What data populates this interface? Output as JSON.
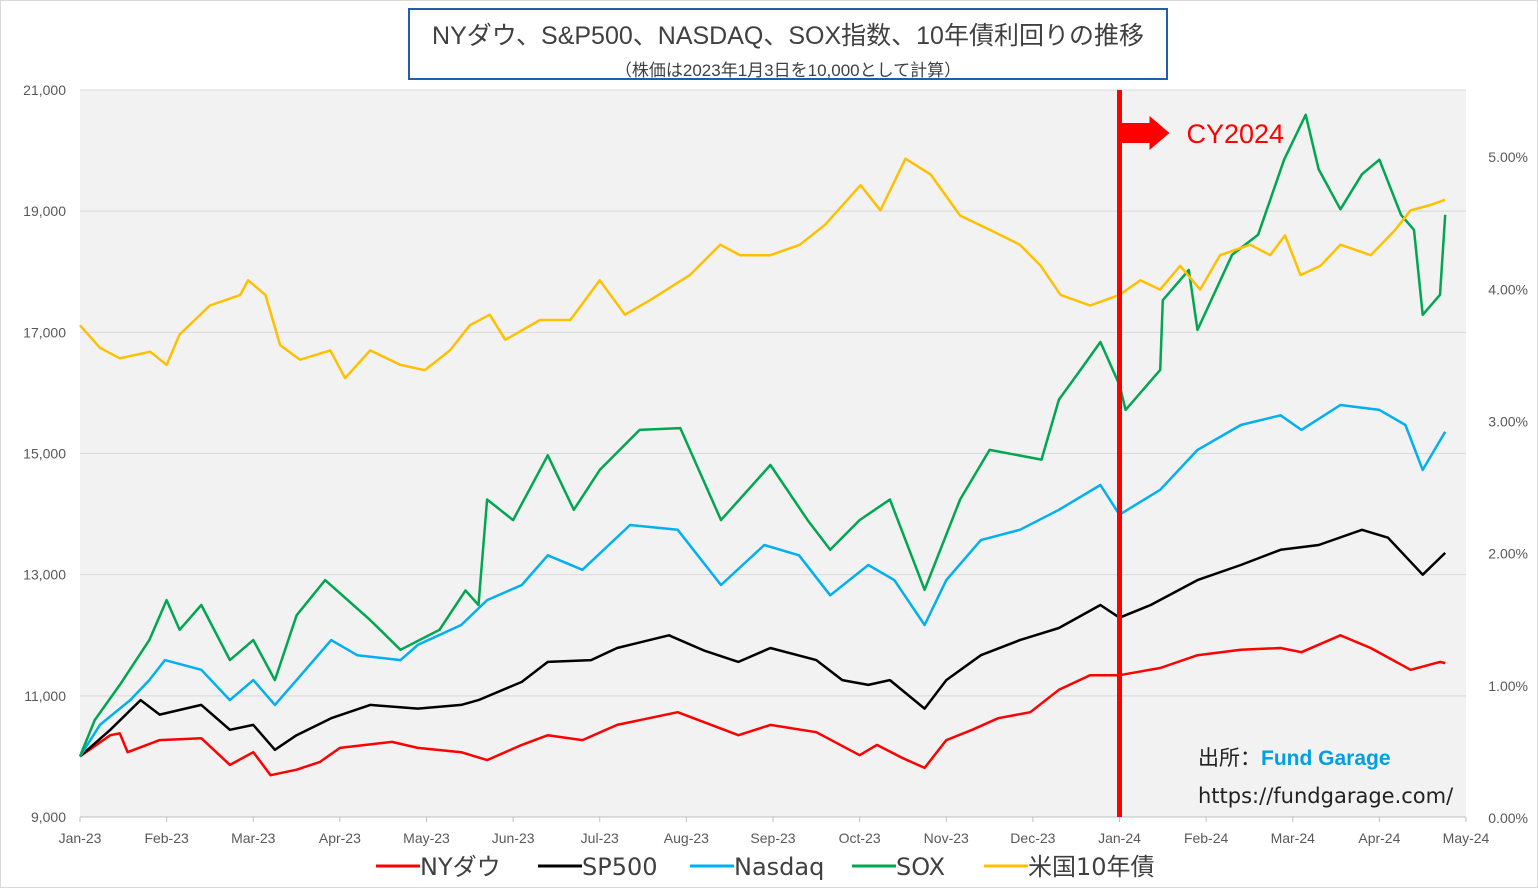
{
  "title": "NYダウ、S&P500、NASDAQ、SOX指数、10年債利回りの推移",
  "subtitle": "（株価は2023年1月3日を10,000として計算）",
  "source": {
    "label": "出所：",
    "name": "Fund Garage",
    "url": "https://fundgarage.com/"
  },
  "chart_data": {
    "type": "line",
    "x_unit": "months since Jan-2023",
    "x_ticks": [
      "Jan-23",
      "Feb-23",
      "Mar-23",
      "Apr-23",
      "May-23",
      "Jun-23",
      "Jul-23",
      "Aug-23",
      "Sep-23",
      "Oct-23",
      "Nov-23",
      "Dec-23",
      "Jan-24",
      "Feb-24",
      "Mar-24",
      "Apr-24",
      "May-24"
    ],
    "xlim": [
      0,
      16
    ],
    "y_left": {
      "lim": [
        9000,
        21000
      ],
      "ticks": [
        "9,000",
        "11,000",
        "13,000",
        "15,000",
        "17,000",
        "19,000",
        "21,000"
      ]
    },
    "y_right": {
      "lim": [
        0,
        5.5
      ],
      "ticks": [
        "0.00%",
        "1.00%",
        "2.00%",
        "3.00%",
        "4.00%",
        "5.00%"
      ]
    },
    "grid": true,
    "legend_position": "bottom",
    "annotation": {
      "text": "CY2024",
      "x": 12,
      "color": "#ff0000"
    },
    "series": [
      {
        "name": "NYダウ",
        "color": "#ff0000",
        "axis": "left",
        "points": [
          [
            0,
            10000
          ],
          [
            0.35,
            10350
          ],
          [
            0.46,
            10380
          ],
          [
            0.55,
            10070
          ],
          [
            0.92,
            10270
          ],
          [
            1.4,
            10300
          ],
          [
            1.73,
            9860
          ],
          [
            2.0,
            10070
          ],
          [
            2.2,
            9690
          ],
          [
            2.5,
            9780
          ],
          [
            2.77,
            9910
          ],
          [
            3.0,
            10140
          ],
          [
            3.6,
            10240
          ],
          [
            3.9,
            10140
          ],
          [
            4.4,
            10070
          ],
          [
            4.7,
            9940
          ],
          [
            5.1,
            10190
          ],
          [
            5.4,
            10350
          ],
          [
            5.8,
            10270
          ],
          [
            6.2,
            10520
          ],
          [
            6.9,
            10730
          ],
          [
            7.6,
            10350
          ],
          [
            7.97,
            10520
          ],
          [
            8.5,
            10400
          ],
          [
            9.0,
            10020
          ],
          [
            9.2,
            10190
          ],
          [
            9.5,
            9970
          ],
          [
            9.75,
            9810
          ],
          [
            10.0,
            10270
          ],
          [
            10.3,
            10440
          ],
          [
            10.6,
            10630
          ],
          [
            10.97,
            10730
          ],
          [
            11.3,
            11100
          ],
          [
            11.66,
            11340
          ],
          [
            12.0,
            11340
          ],
          [
            12.47,
            11460
          ],
          [
            12.9,
            11670
          ],
          [
            13.4,
            11760
          ],
          [
            13.86,
            11790
          ],
          [
            14.1,
            11720
          ],
          [
            14.55,
            12000
          ],
          [
            14.9,
            11790
          ],
          [
            15.36,
            11430
          ],
          [
            15.7,
            11560
          ],
          [
            15.76,
            11540
          ]
        ]
      },
      {
        "name": "SP500",
        "color": "#000000",
        "axis": "left",
        "points": [
          [
            0,
            10000
          ],
          [
            0.35,
            10440
          ],
          [
            0.7,
            10930
          ],
          [
            0.92,
            10690
          ],
          [
            1.4,
            10850
          ],
          [
            1.73,
            10440
          ],
          [
            2.0,
            10520
          ],
          [
            2.25,
            10110
          ],
          [
            2.5,
            10350
          ],
          [
            2.9,
            10630
          ],
          [
            3.35,
            10850
          ],
          [
            3.9,
            10790
          ],
          [
            4.4,
            10850
          ],
          [
            4.6,
            10930
          ],
          [
            5.1,
            11230
          ],
          [
            5.4,
            11560
          ],
          [
            5.9,
            11590
          ],
          [
            6.2,
            11790
          ],
          [
            6.8,
            12000
          ],
          [
            7.2,
            11750
          ],
          [
            7.6,
            11560
          ],
          [
            7.97,
            11790
          ],
          [
            8.5,
            11590
          ],
          [
            8.8,
            11260
          ],
          [
            9.1,
            11180
          ],
          [
            9.35,
            11260
          ],
          [
            9.75,
            10790
          ],
          [
            10.0,
            11260
          ],
          [
            10.4,
            11670
          ],
          [
            10.85,
            11920
          ],
          [
            11.3,
            12120
          ],
          [
            11.78,
            12500
          ],
          [
            12.0,
            12290
          ],
          [
            12.36,
            12500
          ],
          [
            12.9,
            12910
          ],
          [
            13.4,
            13160
          ],
          [
            13.86,
            13410
          ],
          [
            14.3,
            13490
          ],
          [
            14.8,
            13740
          ],
          [
            15.1,
            13610
          ],
          [
            15.5,
            13000
          ],
          [
            15.76,
            13360
          ]
        ]
      },
      {
        "name": "Nasdaq",
        "color": "#00b0f0",
        "axis": "left",
        "points": [
          [
            0,
            10000
          ],
          [
            0.23,
            10520
          ],
          [
            0.58,
            10930
          ],
          [
            0.8,
            11260
          ],
          [
            0.98,
            11590
          ],
          [
            1.4,
            11430
          ],
          [
            1.73,
            10930
          ],
          [
            2.0,
            11260
          ],
          [
            2.25,
            10850
          ],
          [
            2.5,
            11260
          ],
          [
            2.9,
            11920
          ],
          [
            3.2,
            11670
          ],
          [
            3.7,
            11590
          ],
          [
            3.9,
            11840
          ],
          [
            4.4,
            12170
          ],
          [
            4.7,
            12580
          ],
          [
            5.1,
            12830
          ],
          [
            5.4,
            13320
          ],
          [
            5.8,
            13080
          ],
          [
            6.35,
            13820
          ],
          [
            6.9,
            13740
          ],
          [
            7.4,
            12830
          ],
          [
            7.9,
            13490
          ],
          [
            8.3,
            13320
          ],
          [
            8.66,
            12660
          ],
          [
            9.1,
            13160
          ],
          [
            9.4,
            12910
          ],
          [
            9.75,
            12170
          ],
          [
            10.0,
            12910
          ],
          [
            10.4,
            13570
          ],
          [
            10.85,
            13740
          ],
          [
            11.3,
            14070
          ],
          [
            11.78,
            14480
          ],
          [
            12.0,
            13990
          ],
          [
            12.47,
            14400
          ],
          [
            12.9,
            15060
          ],
          [
            13.4,
            15470
          ],
          [
            13.86,
            15630
          ],
          [
            14.1,
            15390
          ],
          [
            14.55,
            15800
          ],
          [
            15.0,
            15720
          ],
          [
            15.3,
            15470
          ],
          [
            15.5,
            14730
          ],
          [
            15.76,
            15360
          ]
        ]
      },
      {
        "name": "SOX",
        "color": "#00a650",
        "axis": "left",
        "points": [
          [
            0,
            10000
          ],
          [
            0.17,
            10600
          ],
          [
            0.46,
            11180
          ],
          [
            0.8,
            11920
          ],
          [
            1.0,
            12580
          ],
          [
            1.15,
            12090
          ],
          [
            1.4,
            12500
          ],
          [
            1.73,
            11590
          ],
          [
            2.0,
            11920
          ],
          [
            2.25,
            11260
          ],
          [
            2.5,
            12330
          ],
          [
            2.83,
            12910
          ],
          [
            3.35,
            12250
          ],
          [
            3.7,
            11760
          ],
          [
            4.15,
            12090
          ],
          [
            4.45,
            12740
          ],
          [
            4.6,
            12500
          ],
          [
            4.7,
            14240
          ],
          [
            5.0,
            13900
          ],
          [
            5.4,
            14970
          ],
          [
            5.7,
            14070
          ],
          [
            6.0,
            14730
          ],
          [
            6.46,
            15390
          ],
          [
            6.93,
            15420
          ],
          [
            7.4,
            13900
          ],
          [
            7.97,
            14810
          ],
          [
            8.4,
            13900
          ],
          [
            8.66,
            13410
          ],
          [
            9.0,
            13900
          ],
          [
            9.35,
            14240
          ],
          [
            9.75,
            12750
          ],
          [
            10.16,
            14240
          ],
          [
            10.5,
            15060
          ],
          [
            11.1,
            14900
          ],
          [
            11.3,
            15890
          ],
          [
            11.55,
            16380
          ],
          [
            11.78,
            16840
          ],
          [
            12.0,
            16130
          ],
          [
            12.07,
            15720
          ],
          [
            12.47,
            16380
          ],
          [
            12.5,
            17530
          ],
          [
            12.8,
            18030
          ],
          [
            12.9,
            17040
          ],
          [
            13.3,
            18280
          ],
          [
            13.6,
            18610
          ],
          [
            13.9,
            19850
          ],
          [
            14.15,
            20590
          ],
          [
            14.3,
            19690
          ],
          [
            14.55,
            19030
          ],
          [
            14.8,
            19610
          ],
          [
            15.0,
            19850
          ],
          [
            15.25,
            18940
          ],
          [
            15.4,
            18690
          ],
          [
            15.5,
            17290
          ],
          [
            15.7,
            17620
          ],
          [
            15.76,
            18940
          ]
        ]
      },
      {
        "name": "米国10年債",
        "color": "#ffc000",
        "axis": "right",
        "points": [
          [
            0,
            3.72
          ],
          [
            0.23,
            3.55
          ],
          [
            0.46,
            3.47
          ],
          [
            0.81,
            3.52
          ],
          [
            1.0,
            3.42
          ],
          [
            1.15,
            3.65
          ],
          [
            1.5,
            3.87
          ],
          [
            1.85,
            3.95
          ],
          [
            1.94,
            4.06
          ],
          [
            2.14,
            3.95
          ],
          [
            2.31,
            3.57
          ],
          [
            2.54,
            3.46
          ],
          [
            2.89,
            3.53
          ],
          [
            3.06,
            3.32
          ],
          [
            3.35,
            3.53
          ],
          [
            3.7,
            3.42
          ],
          [
            3.98,
            3.38
          ],
          [
            4.27,
            3.53
          ],
          [
            4.5,
            3.72
          ],
          [
            4.73,
            3.8
          ],
          [
            4.91,
            3.61
          ],
          [
            5.31,
            3.76
          ],
          [
            5.66,
            3.76
          ],
          [
            6.0,
            4.06
          ],
          [
            6.29,
            3.8
          ],
          [
            6.58,
            3.91
          ],
          [
            7.04,
            4.1
          ],
          [
            7.39,
            4.33
          ],
          [
            7.62,
            4.25
          ],
          [
            7.97,
            4.25
          ],
          [
            8.31,
            4.33
          ],
          [
            8.6,
            4.48
          ],
          [
            9.01,
            4.78
          ],
          [
            9.24,
            4.59
          ],
          [
            9.53,
            4.98
          ],
          [
            9.82,
            4.86
          ],
          [
            10.16,
            4.55
          ],
          [
            10.51,
            4.44
          ],
          [
            10.85,
            4.33
          ],
          [
            11.09,
            4.17
          ],
          [
            11.32,
            3.95
          ],
          [
            11.66,
            3.87
          ],
          [
            12.0,
            3.95
          ],
          [
            12.24,
            4.06
          ],
          [
            12.47,
            3.99
          ],
          [
            12.7,
            4.17
          ],
          [
            12.93,
            3.99
          ],
          [
            13.16,
            4.25
          ],
          [
            13.51,
            4.33
          ],
          [
            13.74,
            4.25
          ],
          [
            13.91,
            4.4
          ],
          [
            14.09,
            4.1
          ],
          [
            14.32,
            4.17
          ],
          [
            14.55,
            4.33
          ],
          [
            14.9,
            4.25
          ],
          [
            15.18,
            4.44
          ],
          [
            15.36,
            4.59
          ],
          [
            15.59,
            4.63
          ],
          [
            15.76,
            4.67
          ]
        ]
      }
    ]
  }
}
